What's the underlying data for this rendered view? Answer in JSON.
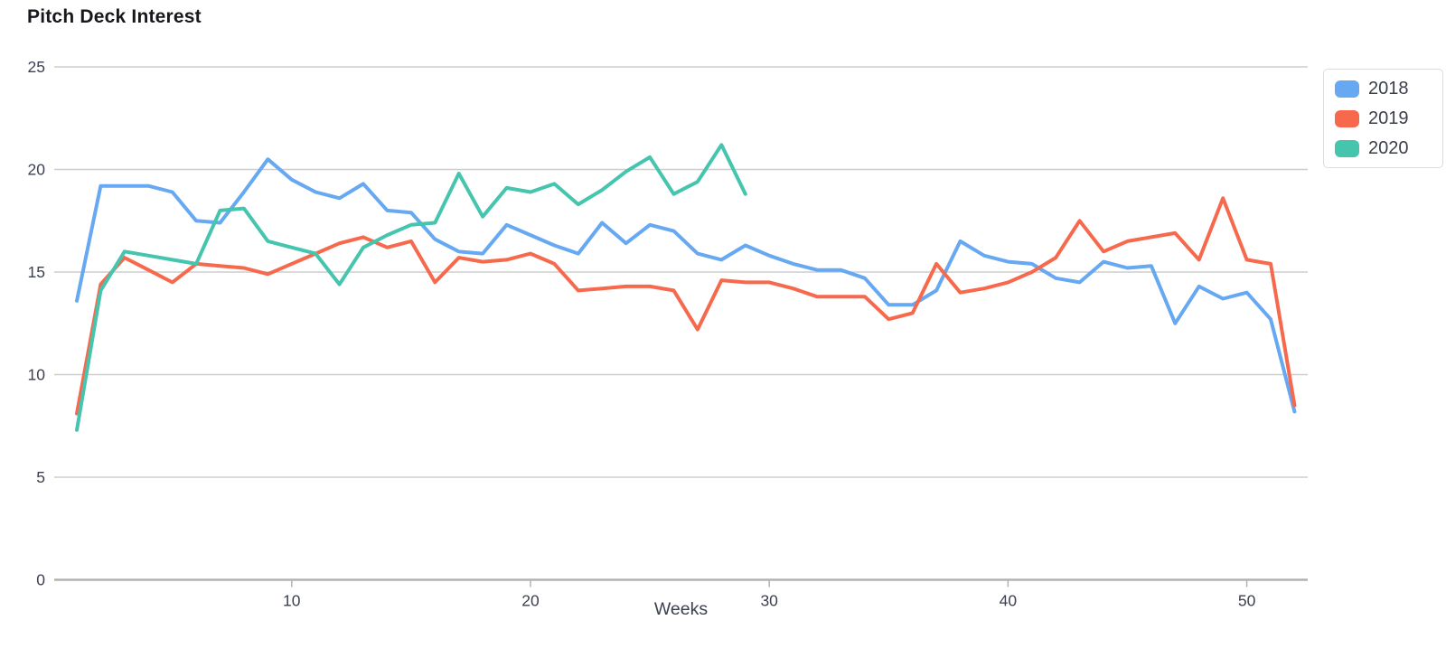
{
  "title": "Pitch Deck Interest",
  "colors": {
    "series_2018": "#66a8f2",
    "series_2019": "#f6694c",
    "series_2020": "#45c4ae",
    "gridline": "#cdcdcd",
    "axis_line": "#b2b2b2",
    "tick_label": "#3c4150",
    "title_text": "#17181c",
    "legend_border": "#dcdcdc"
  },
  "legend": {
    "position": "top-right",
    "items": [
      {
        "label": "2018",
        "color": "#66a8f2"
      },
      {
        "label": "2019",
        "color": "#f6694c"
      },
      {
        "label": "2020",
        "color": "#45c4ae"
      }
    ]
  },
  "chart_data": {
    "type": "line",
    "title": "Pitch Deck Interest",
    "xlabel": "Weeks",
    "ylabel": "",
    "xlim": [
      1,
      52
    ],
    "ylim": [
      0,
      25
    ],
    "x_ticks": [
      10,
      20,
      30,
      40,
      50
    ],
    "y_ticks": [
      0,
      5,
      10,
      15,
      20,
      25
    ],
    "grid": "horizontal",
    "legend_position": "top-right",
    "x_unit": "week number, weeks 1-52",
    "series": [
      {
        "name": "2018",
        "color": "#66a8f2",
        "start_week": 1,
        "values": [
          13.6,
          19.2,
          19.2,
          19.2,
          18.9,
          17.5,
          17.4,
          18.9,
          20.5,
          19.5,
          18.9,
          18.6,
          19.3,
          18.0,
          17.9,
          16.6,
          16.0,
          15.9,
          17.3,
          16.8,
          16.3,
          15.9,
          17.4,
          16.4,
          17.3,
          17.0,
          15.9,
          15.6,
          16.3,
          15.8,
          15.4,
          15.1,
          15.1,
          14.7,
          13.4,
          13.4,
          14.1,
          16.5,
          15.8,
          15.5,
          15.4,
          14.7,
          14.5,
          15.5,
          15.2,
          15.3,
          12.5,
          14.3,
          13.7,
          14.0,
          12.7,
          8.2
        ]
      },
      {
        "name": "2019",
        "color": "#f6694c",
        "start_week": 1,
        "values": [
          8.1,
          14.4,
          15.7,
          15.1,
          14.5,
          15.4,
          15.3,
          15.2,
          14.9,
          15.4,
          15.9,
          16.4,
          16.7,
          16.2,
          16.5,
          14.5,
          15.7,
          15.5,
          15.6,
          15.9,
          15.4,
          14.1,
          14.2,
          14.3,
          14.3,
          14.1,
          12.2,
          14.6,
          14.5,
          14.5,
          14.2,
          13.8,
          13.8,
          13.8,
          12.7,
          13.0,
          15.4,
          14.0,
          14.2,
          14.5,
          15.0,
          15.7,
          17.5,
          16.0,
          16.5,
          16.7,
          16.9,
          15.6,
          18.6,
          15.6,
          15.4,
          8.5
        ]
      },
      {
        "name": "2020",
        "color": "#45c4ae",
        "start_week": 1,
        "values": [
          7.3,
          14.1,
          16.0,
          15.8,
          15.6,
          15.4,
          18.0,
          18.1,
          16.5,
          16.2,
          15.9,
          14.4,
          16.2,
          16.8,
          17.3,
          17.4,
          19.8,
          17.7,
          19.1,
          18.9,
          19.3,
          18.3,
          19.0,
          19.9,
          20.6,
          18.8,
          19.4,
          21.2,
          18.8
        ]
      }
    ]
  }
}
